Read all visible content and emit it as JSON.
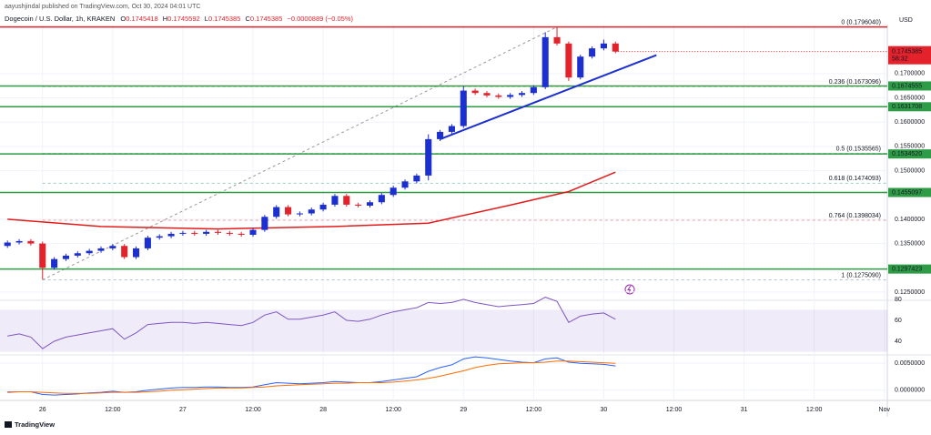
{
  "chart_data": {
    "type": "candlestick",
    "publisher": "aayushjindal published on TradingView.com, Oct 30, 2024 04:01 UTC",
    "title": "Dogecoin / U.S. Dollar, 1h, KRAKEN",
    "ohlc_labels": [
      "O",
      "H",
      "L",
      "C"
    ],
    "ohlc": [
      0.1745418,
      0.1745592,
      0.1745385,
      0.1745385
    ],
    "change_label": "−0.0000889 (−0.05%)",
    "currency": "USD",
    "brand": "TradingView",
    "up_color": "#1c2fd0",
    "down_color": "#e3222b",
    "xlim": [
      -6.5,
      144.5
    ],
    "xticks": [
      {
        "value": 0,
        "label": "26"
      },
      {
        "value": 12,
        "label": "12:00"
      },
      {
        "value": 24,
        "label": "27"
      },
      {
        "value": 36,
        "label": "12:00"
      },
      {
        "value": 48,
        "label": "28"
      },
      {
        "value": 60,
        "label": "12:00"
      },
      {
        "value": 72,
        "label": "29"
      },
      {
        "value": 84,
        "label": "12:00"
      },
      {
        "value": 96,
        "label": "30"
      },
      {
        "value": 108,
        "label": "12:00"
      },
      {
        "value": 120,
        "label": "31"
      },
      {
        "value": 132,
        "label": "12:00"
      },
      {
        "value": 144,
        "label": "Nov"
      }
    ],
    "ylim": [
      0.1233,
      0.1801
    ],
    "yticks": [
      {
        "value": 0.17,
        "label": "0.1700000"
      },
      {
        "value": 0.165,
        "label": "0.1650000"
      },
      {
        "value": 0.16,
        "label": "0.1600000"
      },
      {
        "value": 0.155,
        "label": "0.1550000"
      },
      {
        "value": 0.15,
        "label": "0.1500000"
      },
      {
        "value": 0.14,
        "label": "0.1400000"
      },
      {
        "value": 0.135,
        "label": "0.1350000"
      },
      {
        "value": 0.125,
        "label": "0.1250000"
      }
    ],
    "grid": true,
    "x": [
      -6,
      -4,
      -2,
      0,
      2,
      4,
      6,
      8,
      10,
      12,
      14,
      16,
      18,
      20,
      22,
      24,
      26,
      28,
      30,
      32,
      34,
      36,
      38,
      40,
      42,
      44,
      46,
      48,
      50,
      52,
      54,
      56,
      58,
      60,
      62,
      64,
      66,
      68,
      70,
      72,
      74,
      76,
      78,
      80,
      82,
      84,
      86,
      88,
      90,
      92,
      94,
      96,
      98
    ],
    "open": [
      0.1345,
      0.1352,
      0.1355,
      0.135,
      0.13,
      0.1318,
      0.1325,
      0.133,
      0.1335,
      0.134,
      0.1345,
      0.1322,
      0.134,
      0.1362,
      0.1365,
      0.137,
      0.1372,
      0.137,
      0.1374,
      0.1372,
      0.137,
      0.1368,
      0.1378,
      0.1405,
      0.1425,
      0.141,
      0.1412,
      0.142,
      0.143,
      0.1448,
      0.143,
      0.1428,
      0.1435,
      0.145,
      0.1465,
      0.1478,
      0.149,
      0.1565,
      0.158,
      0.1592,
      0.1665,
      0.166,
      0.1655,
      0.1652,
      0.1656,
      0.166,
      0.1672,
      0.1775,
      0.1762,
      0.1692,
      0.1735,
      0.1752,
      0.1762
    ],
    "high": [
      0.1356,
      0.1359,
      0.1359,
      0.1354,
      0.1322,
      0.1329,
      0.1334,
      0.1339,
      0.1344,
      0.1349,
      0.1349,
      0.1344,
      0.1366,
      0.1369,
      0.1374,
      0.1376,
      0.1376,
      0.1378,
      0.1378,
      0.1376,
      0.1374,
      0.1382,
      0.1409,
      0.1429,
      0.1429,
      0.1416,
      0.1424,
      0.1434,
      0.1452,
      0.1452,
      0.1434,
      0.1439,
      0.1454,
      0.1469,
      0.1482,
      0.1494,
      0.1575,
      0.1584,
      0.1596,
      0.1674,
      0.1669,
      0.1664,
      0.1659,
      0.166,
      0.1664,
      0.1676,
      0.1785,
      0.1796,
      0.1766,
      0.1739,
      0.1756,
      0.177,
      0.1766
    ],
    "low": [
      0.1341,
      0.1348,
      0.1346,
      0.1276,
      0.1296,
      0.1314,
      0.1321,
      0.1326,
      0.1331,
      0.1336,
      0.1318,
      0.1318,
      0.1336,
      0.1358,
      0.1361,
      0.1366,
      0.1366,
      0.1366,
      0.1368,
      0.1366,
      0.1364,
      0.1364,
      0.1374,
      0.1401,
      0.1406,
      0.1406,
      0.1408,
      0.1416,
      0.1426,
      0.1426,
      0.1424,
      0.1424,
      0.1431,
      0.1446,
      0.1461,
      0.1474,
      0.148,
      0.1561,
      0.1576,
      0.1588,
      0.1656,
      0.1651,
      0.1648,
      0.1648,
      0.1652,
      0.1656,
      0.1668,
      0.1758,
      0.1685,
      0.1688,
      0.1731,
      0.1748,
      0.1742
    ],
    "close": [
      0.1352,
      0.1355,
      0.135,
      0.13,
      0.1318,
      0.1325,
      0.133,
      0.1335,
      0.134,
      0.1345,
      0.1322,
      0.134,
      0.1362,
      0.1365,
      0.137,
      0.1372,
      0.137,
      0.1374,
      0.1372,
      0.137,
      0.1368,
      0.1378,
      0.1405,
      0.1425,
      0.141,
      0.1412,
      0.142,
      0.143,
      0.1448,
      0.143,
      0.1428,
      0.1435,
      0.145,
      0.1465,
      0.1478,
      0.149,
      0.1565,
      0.158,
      0.1592,
      0.1665,
      0.166,
      0.1655,
      0.1652,
      0.1656,
      0.166,
      0.1672,
      0.1775,
      0.1762,
      0.1692,
      0.1735,
      0.1752,
      0.1762,
      0.1745385
    ],
    "current_price": {
      "value": 0.1745385,
      "label": "0.1745385"
    },
    "countdown": "58:32",
    "level_color": "#2e9b46",
    "levels": [
      {
        "value": 0.1674555,
        "label": "0.1674555"
      },
      {
        "value": 0.1631708,
        "label": "0.1631708"
      },
      {
        "value": 0.153452,
        "label": "0.1534520"
      },
      {
        "value": 0.1455097,
        "label": "0.1455097"
      },
      {
        "value": 0.1297423,
        "label": "0.1297423"
      }
    ],
    "fib_levels": [
      {
        "value": 0.179604,
        "label": "0 (0.1796040)",
        "color": "#787b86"
      },
      {
        "value": 0.1673096,
        "label": "0.236 (0.1673096)",
        "color": "#e07a1f"
      },
      {
        "value": 0.1535565,
        "label": "0.5 (0.1535565)",
        "color": "#2f7d32"
      },
      {
        "value": 0.1474093,
        "label": "0.618 (0.1474093)",
        "color": "#1e9a86"
      },
      {
        "value": 0.1398034,
        "label": "0.764 (0.1398034)",
        "color": "#d32f2f"
      },
      {
        "value": 0.127509,
        "label": "1 (0.1275090)",
        "color": "#5b7fa6"
      }
    ],
    "resistance_color": "#e3222b",
    "trendline": {
      "color": "#1c2fd0",
      "x": [
        68,
        105
      ],
      "values": [
        0.1565,
        0.1738
      ]
    },
    "ma": {
      "color": "#e31b1b",
      "x": [
        -6,
        10,
        30,
        50,
        66,
        80,
        90,
        98
      ],
      "values": [
        0.14,
        0.1385,
        0.138,
        0.1385,
        0.1392,
        0.1429,
        0.1457,
        0.1497
      ]
    },
    "rsi": {
      "color": "#7e57c2",
      "ylim": [
        27,
        86
      ],
      "yticks": [
        80,
        60,
        40
      ],
      "band": [
        30,
        70
      ],
      "values": [
        45,
        47,
        44,
        33,
        40,
        44,
        46,
        48,
        50,
        52,
        42,
        48,
        56,
        57,
        58,
        58,
        57,
        58,
        57,
        56,
        55,
        58,
        65,
        68,
        61,
        61,
        63,
        65,
        68,
        60,
        59,
        61,
        65,
        68,
        70,
        72,
        77,
        76,
        77,
        80,
        77,
        75,
        73,
        74,
        75,
        76,
        82,
        78,
        58,
        64,
        66,
        67,
        61
      ]
    },
    "macd": {
      "ylim": [
        -0.0019,
        0.00655
      ],
      "yticks": [
        {
          "value": 0.005,
          "label": "0.0050000"
        },
        {
          "value": 0,
          "label": "0.0000000"
        }
      ],
      "series": [
        {
          "color": "#2962ff",
          "values": [
            -0.0004,
            -0.0003,
            -0.0003,
            -0.0008,
            -0.0009,
            -0.0008,
            -0.0007,
            -0.0005,
            -0.0004,
            -0.0002,
            -0.0004,
            -0.0003,
            0,
            0.0002,
            0.0004,
            0.0005,
            0.0005,
            0.0006,
            0.0006,
            0.0005,
            0.0005,
            0.0006,
            0.001,
            0.0014,
            0.0013,
            0.0012,
            0.0013,
            0.0014,
            0.0016,
            0.0015,
            0.0014,
            0.0014,
            0.0016,
            0.0019,
            0.0022,
            0.0025,
            0.0035,
            0.0042,
            0.0047,
            0.0058,
            0.0062,
            0.006,
            0.0057,
            0.0054,
            0.0052,
            0.0051,
            0.0058,
            0.006,
            0.0052,
            0.005,
            0.0049,
            0.0048,
            0.0045
          ]
        },
        {
          "color": "#ff6d00",
          "values": [
            -0.0003,
            -0.0003,
            -0.0003,
            -0.0004,
            -0.0005,
            -0.0006,
            -0.0006,
            -0.0006,
            -0.0005,
            -0.0004,
            -0.0004,
            -0.0004,
            -0.0003,
            -0.0002,
            0,
            0.0001,
            0.0002,
            0.0003,
            0.0004,
            0.0004,
            0.0004,
            0.0005,
            0.0006,
            0.0008,
            0.0009,
            0.001,
            0.0011,
            0.0012,
            0.0013,
            0.0013,
            0.0014,
            0.0014,
            0.0014,
            0.0015,
            0.0017,
            0.0019,
            0.0022,
            0.0026,
            0.0031,
            0.0036,
            0.0042,
            0.0046,
            0.0049,
            0.005,
            0.0051,
            0.0051,
            0.0052,
            0.0054,
            0.0054,
            0.0053,
            0.0052,
            0.0051,
            0.005
          ]
        }
      ]
    }
  }
}
